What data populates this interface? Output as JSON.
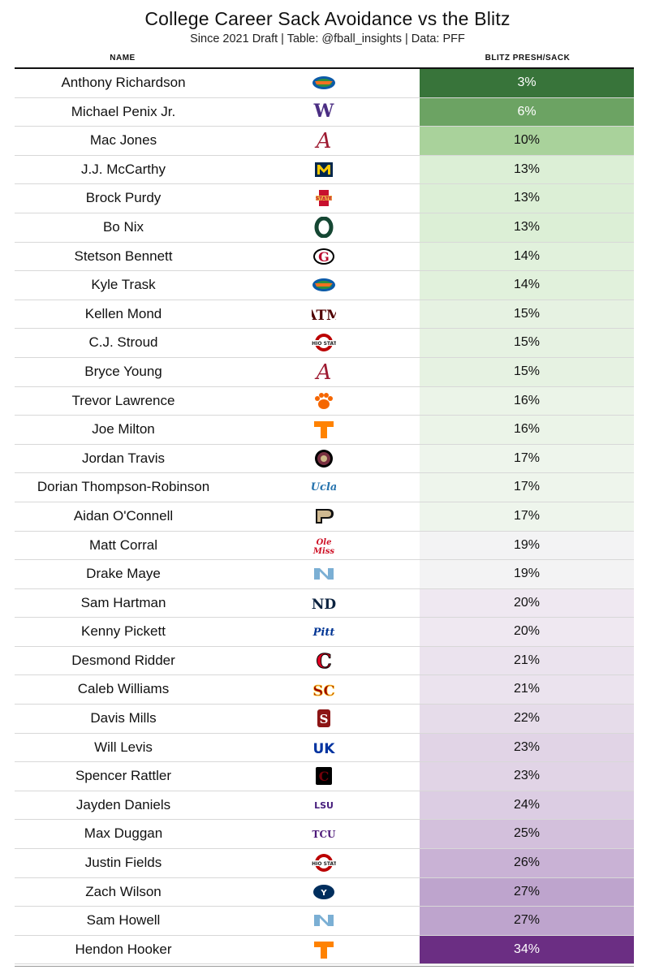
{
  "title": "College Career Sack Avoidance vs the Blitz",
  "subtitle": "Since 2021 Draft | Table: @fball_insights | Data: PFF",
  "columns": {
    "name": "NAME",
    "value": "BLITZ PRESH/SACK"
  },
  "chart_data": {
    "type": "table",
    "title": "College Career Sack Avoidance vs the Blitz",
    "subtitle": "Since 2021 Draft | Table: @fball_insights | Data: PFF",
    "columns": [
      "NAME",
      "BLITZ PRESH/SACK"
    ],
    "rows": [
      {
        "name": "Anthony Richardson",
        "logo": "florida-gator-logo",
        "value": 3,
        "label": "3%",
        "bg": "#38743a",
        "fg": "#ffffff"
      },
      {
        "name": "Michael Penix Jr.",
        "logo": "washington-w-logo",
        "value": 6,
        "label": "6%",
        "bg": "#6ca363",
        "fg": "#ffffff"
      },
      {
        "name": "Mac Jones",
        "logo": "alabama-a-logo",
        "value": 10,
        "label": "10%",
        "bg": "#a9d29b",
        "fg": "#111111"
      },
      {
        "name": "J.J. McCarthy",
        "logo": "michigan-m-logo",
        "value": 13,
        "label": "13%",
        "bg": "#dcefd6",
        "fg": "#111111"
      },
      {
        "name": "Brock Purdy",
        "logo": "iowa-state-logo",
        "value": 13,
        "label": "13%",
        "bg": "#dcefd6",
        "fg": "#111111"
      },
      {
        "name": "Bo Nix",
        "logo": "oregon-o-logo",
        "value": 13,
        "label": "13%",
        "bg": "#dcefd6",
        "fg": "#111111"
      },
      {
        "name": "Stetson Bennett",
        "logo": "georgia-g-logo",
        "value": 14,
        "label": "14%",
        "bg": "#e1f1dc",
        "fg": "#111111"
      },
      {
        "name": "Kyle Trask",
        "logo": "florida-gator-logo",
        "value": 14,
        "label": "14%",
        "bg": "#e1f1dc",
        "fg": "#111111"
      },
      {
        "name": "Kellen Mond",
        "logo": "texas-am-logo",
        "value": 15,
        "label": "15%",
        "bg": "#e6f2e2",
        "fg": "#111111"
      },
      {
        "name": "C.J. Stroud",
        "logo": "ohio-state-logo",
        "value": 15,
        "label": "15%",
        "bg": "#e6f2e2",
        "fg": "#111111"
      },
      {
        "name": "Bryce Young",
        "logo": "alabama-a-logo",
        "value": 15,
        "label": "15%",
        "bg": "#e6f2e2",
        "fg": "#111111"
      },
      {
        "name": "Trevor Lawrence",
        "logo": "clemson-paw-logo",
        "value": 16,
        "label": "16%",
        "bg": "#ebf4e8",
        "fg": "#111111"
      },
      {
        "name": "Joe Milton",
        "logo": "tennessee-t-logo",
        "value": 16,
        "label": "16%",
        "bg": "#ebf4e8",
        "fg": "#111111"
      },
      {
        "name": "Jordan Travis",
        "logo": "florida-state-logo",
        "value": 17,
        "label": "17%",
        "bg": "#eef5ec",
        "fg": "#111111"
      },
      {
        "name": "Dorian Thompson-Robinson",
        "logo": "ucla-logo",
        "value": 17,
        "label": "17%",
        "bg": "#eef5ec",
        "fg": "#111111"
      },
      {
        "name": "Aidan O'Connell",
        "logo": "purdue-p-logo",
        "value": 17,
        "label": "17%",
        "bg": "#eef5ec",
        "fg": "#111111"
      },
      {
        "name": "Matt Corral",
        "logo": "ole-miss-logo",
        "value": 19,
        "label": "19%",
        "bg": "#f3f3f4",
        "fg": "#111111"
      },
      {
        "name": "Drake Maye",
        "logo": "north-carolina-logo",
        "value": 19,
        "label": "19%",
        "bg": "#f3f3f4",
        "fg": "#111111"
      },
      {
        "name": "Sam Hartman",
        "logo": "notre-dame-logo",
        "value": 20,
        "label": "20%",
        "bg": "#efe8f1",
        "fg": "#111111"
      },
      {
        "name": "Kenny Pickett",
        "logo": "pitt-logo",
        "value": 20,
        "label": "20%",
        "bg": "#efe8f1",
        "fg": "#111111"
      },
      {
        "name": "Desmond Ridder",
        "logo": "cincinnati-c-logo",
        "value": 21,
        "label": "21%",
        "bg": "#ebe3ee",
        "fg": "#111111"
      },
      {
        "name": "Caleb Williams",
        "logo": "usc-logo",
        "value": 21,
        "label": "21%",
        "bg": "#ebe3ee",
        "fg": "#111111"
      },
      {
        "name": "Davis Mills",
        "logo": "stanford-s-logo",
        "value": 22,
        "label": "22%",
        "bg": "#e6dcea",
        "fg": "#111111"
      },
      {
        "name": "Will Levis",
        "logo": "kentucky-uk-logo",
        "value": 23,
        "label": "23%",
        "bg": "#e1d4e6",
        "fg": "#111111"
      },
      {
        "name": "Spencer Rattler",
        "logo": "south-carolina-logo",
        "value": 23,
        "label": "23%",
        "bg": "#e1d4e6",
        "fg": "#111111"
      },
      {
        "name": "Jayden Daniels",
        "logo": "lsu-logo",
        "value": 24,
        "label": "24%",
        "bg": "#dccde3",
        "fg": "#111111"
      },
      {
        "name": "Max Duggan",
        "logo": "tcu-logo",
        "value": 25,
        "label": "25%",
        "bg": "#d3c0dc",
        "fg": "#111111"
      },
      {
        "name": "Justin Fields",
        "logo": "ohio-state-logo",
        "value": 26,
        "label": "26%",
        "bg": "#c9b2d5",
        "fg": "#111111"
      },
      {
        "name": "Zach Wilson",
        "logo": "byu-logo",
        "value": 27,
        "label": "27%",
        "bg": "#bea4cd",
        "fg": "#111111"
      },
      {
        "name": "Sam Howell",
        "logo": "north-carolina-logo",
        "value": 27,
        "label": "27%",
        "bg": "#bea4cd",
        "fg": "#111111"
      },
      {
        "name": "Hendon Hooker",
        "logo": "tennessee-t-logo",
        "value": 34,
        "label": "34%",
        "bg": "#6b2e83",
        "fg": "#ffffff"
      }
    ]
  }
}
